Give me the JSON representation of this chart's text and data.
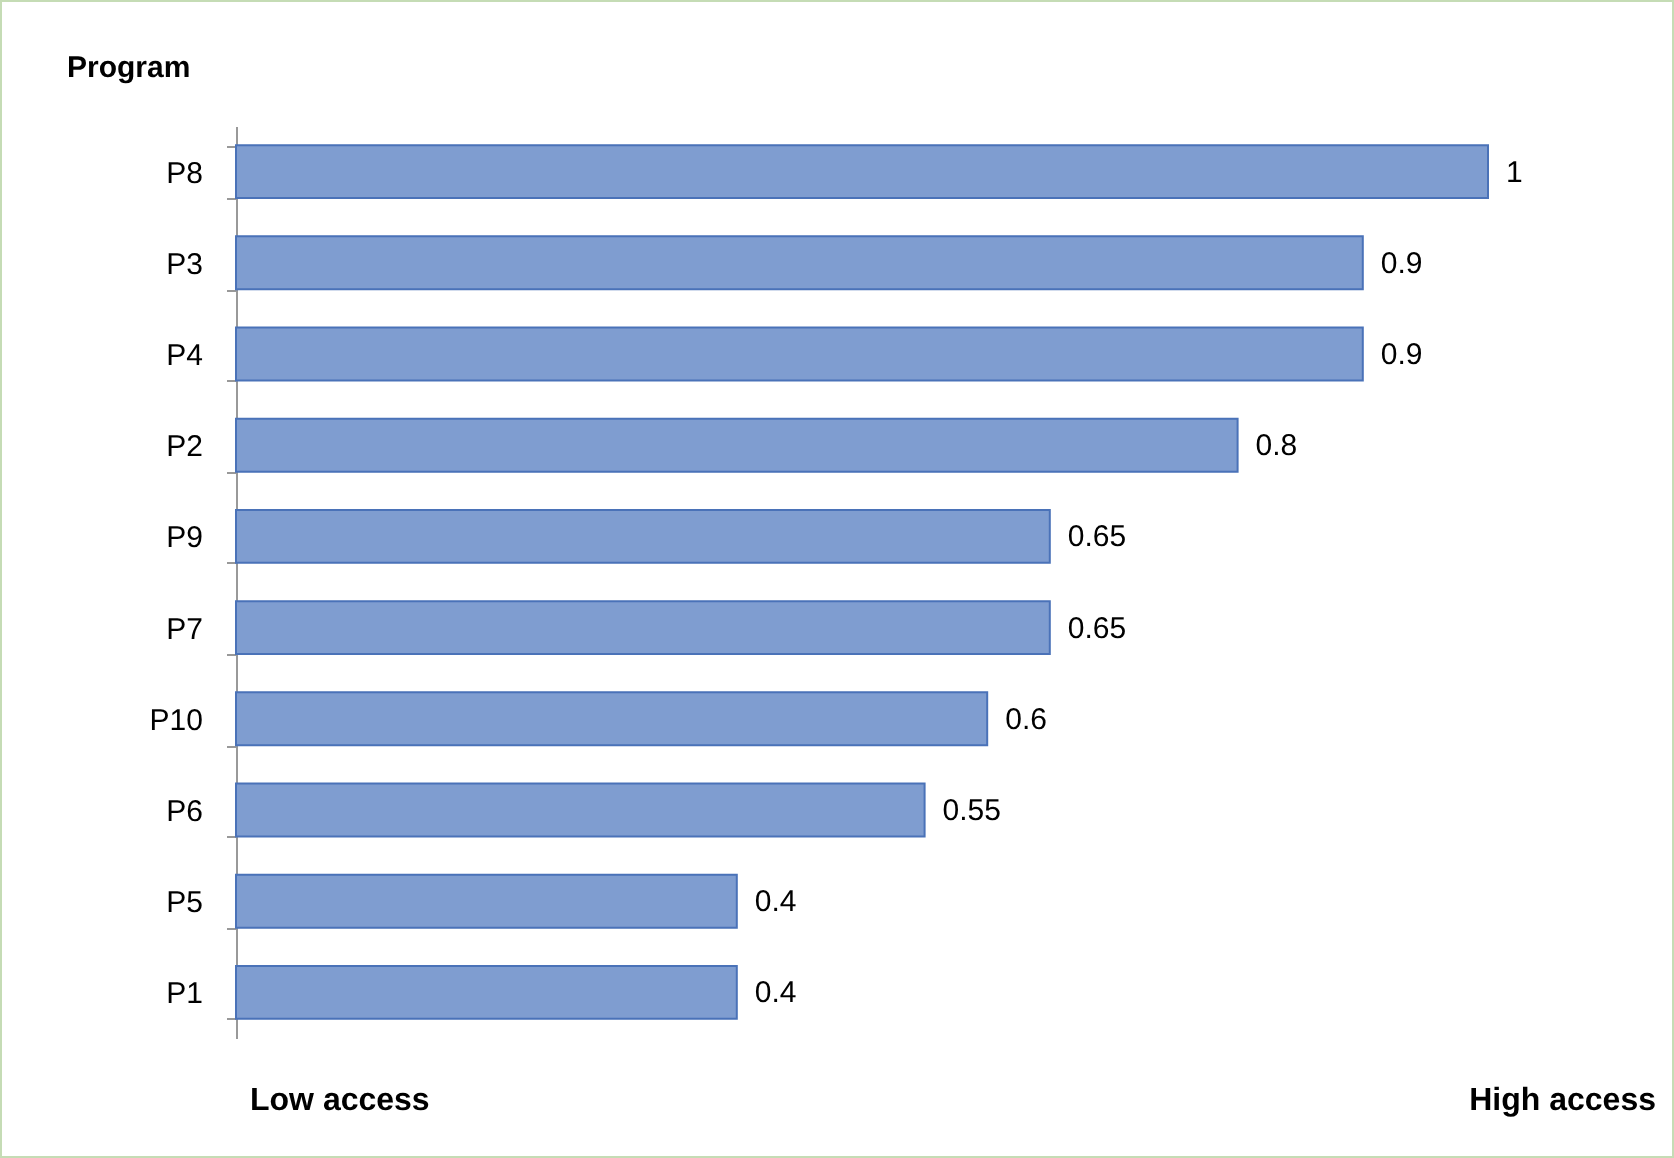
{
  "chart_data": {
    "type": "bar",
    "orientation": "horizontal",
    "ylabel": "Program",
    "categories": [
      "P8",
      "P3",
      "P4",
      "P2",
      "P9",
      "P7",
      "P10",
      "P6",
      "P5",
      "P1"
    ],
    "values": [
      1,
      0.9,
      0.9,
      0.8,
      0.65,
      0.65,
      0.6,
      0.55,
      0.4,
      0.4
    ],
    "color": "#7f9dd0",
    "xlim": [
      0,
      1
    ],
    "data_labels": true,
    "grid": false,
    "annotations": [
      "Low access",
      "High access"
    ]
  }
}
